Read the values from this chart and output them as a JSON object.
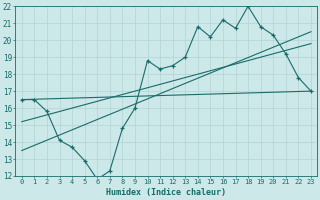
{
  "xlabel": "Humidex (Indice chaleur)",
  "bg_color": "#cce8e8",
  "line_color": "#1a6b6b",
  "grid_color": "#b0d4d4",
  "xlim": [
    -0.5,
    23.5
  ],
  "ylim": [
    12,
    22
  ],
  "xticks": [
    0,
    1,
    2,
    3,
    4,
    5,
    6,
    7,
    8,
    9,
    10,
    11,
    12,
    13,
    14,
    15,
    16,
    17,
    18,
    19,
    20,
    21,
    22,
    23
  ],
  "yticks": [
    12,
    13,
    14,
    15,
    16,
    17,
    18,
    19,
    20,
    21,
    22
  ],
  "series1_x": [
    0,
    1,
    2,
    3,
    4,
    5,
    6,
    7,
    8,
    9,
    10,
    11,
    12,
    13,
    14,
    15,
    16,
    17,
    18,
    19,
    20,
    21,
    22,
    23
  ],
  "series1_y": [
    16.5,
    16.5,
    15.8,
    14.1,
    13.7,
    12.9,
    11.8,
    12.3,
    14.8,
    16.0,
    18.8,
    18.3,
    18.5,
    19.0,
    20.8,
    20.2,
    21.2,
    20.7,
    22.0,
    20.8,
    20.3,
    19.2,
    17.8,
    17.0
  ],
  "trend1_x": [
    0,
    23
  ],
  "trend1_y": [
    16.5,
    17.0
  ],
  "trend2_x": [
    0,
    23
  ],
  "trend2_y": [
    15.2,
    19.8
  ],
  "trend3_x": [
    0,
    23
  ],
  "trend3_y": [
    13.5,
    20.5
  ],
  "figsize": [
    3.2,
    2.0
  ],
  "dpi": 100
}
